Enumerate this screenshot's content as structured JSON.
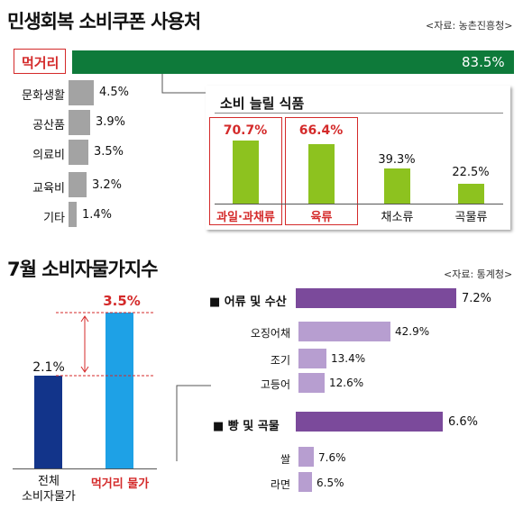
{
  "section1": {
    "title": "민생회복 소비쿠폰 사용처",
    "source": "<자료: 농촌진흥청>",
    "highlight": {
      "label": "먹거리",
      "value_label": "83.5%"
    },
    "others": [
      {
        "label": "문화생활",
        "value_label": "4.5%"
      },
      {
        "label": "공산품",
        "value_label": "3.9%"
      },
      {
        "label": "의료비",
        "value_label": "3.5%"
      },
      {
        "label": "교육비",
        "value_label": "3.2%"
      },
      {
        "label": "기타",
        "value_label": "1.4%"
      }
    ],
    "inset": {
      "title": "소비 늘릴 식품",
      "items": [
        {
          "label": "과일·과채류",
          "value_label": "70.7%",
          "highlight": true
        },
        {
          "label": "육류",
          "value_label": "66.4%",
          "highlight": true
        },
        {
          "label": "채소류",
          "value_label": "39.3%",
          "highlight": false
        },
        {
          "label": "곡물류",
          "value_label": "22.5%",
          "highlight": false
        }
      ]
    }
  },
  "section2": {
    "title": "7월 소비자물가지수",
    "source": "<자료: 통계청>",
    "bars": [
      {
        "label": "전체\n소비자물가",
        "value_label": "2.1%"
      },
      {
        "label": "먹거리 물가",
        "value_label": "3.5%"
      }
    ],
    "right": {
      "groups": [
        {
          "label": "■ 어류 및 수산",
          "value_label": "7.2%",
          "items": [
            {
              "label": "오징어채",
              "value_label": "42.9%"
            },
            {
              "label": "조기",
              "value_label": "13.4%"
            },
            {
              "label": "고등어",
              "value_label": "12.6%"
            }
          ]
        },
        {
          "label": "■ 빵 및 곡물",
          "value_label": "6.6%",
          "items": [
            {
              "label": "쌀",
              "value_label": "7.6%"
            },
            {
              "label": "라면",
              "value_label": "6.5%"
            }
          ]
        }
      ]
    }
  },
  "colors": {
    "green_dark": "#0e7a3a",
    "green_light": "#8dc21f",
    "navy": "#12348a",
    "sky": "#1ea1e6",
    "purple": "#7b4a9b",
    "lavender": "#b79ed0",
    "gray": "#a3a3a3",
    "red": "#d42a2a"
  },
  "chart_data": [
    {
      "type": "bar",
      "title": "민생회복 소비쿠폰 사용처",
      "categories": [
        "먹거리",
        "문화생활",
        "공산품",
        "의료비",
        "교육비",
        "기타"
      ],
      "values": [
        83.5,
        4.5,
        3.9,
        3.5,
        3.2,
        1.4
      ]
    },
    {
      "type": "bar",
      "title": "소비 늘릴 식품",
      "categories": [
        "과일·과채류",
        "육류",
        "채소류",
        "곡물류"
      ],
      "values": [
        70.7,
        66.4,
        39.3,
        22.5
      ]
    },
    {
      "type": "bar",
      "title": "7월 소비자물가지수",
      "categories": [
        "전체 소비자물가",
        "먹거리 물가"
      ],
      "values": [
        2.1,
        3.5
      ]
    },
    {
      "type": "bar",
      "categories": [
        "어류 및 수산",
        "오징어채",
        "조기",
        "고등어",
        "빵 및 곡물",
        "쌀",
        "라면"
      ],
      "values": [
        7.2,
        42.9,
        13.4,
        12.6,
        6.6,
        7.6,
        6.5
      ]
    }
  ]
}
